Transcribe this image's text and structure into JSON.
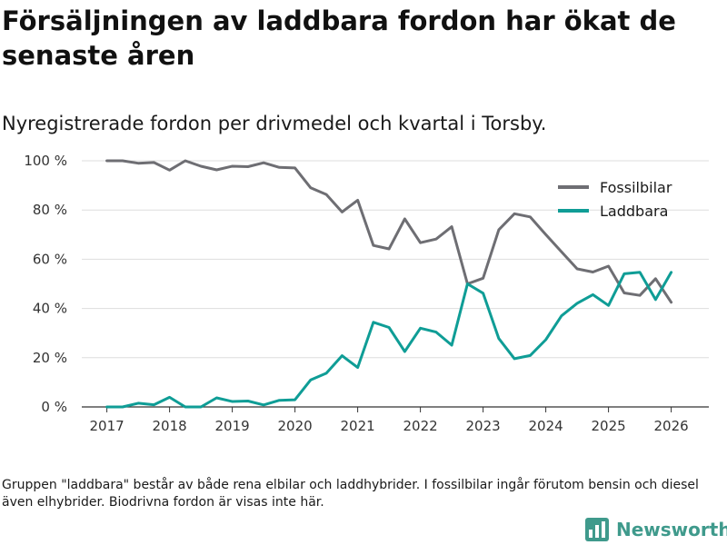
{
  "header": {
    "title": "Försäljningen av laddbara fordon har ökat de senaste åren",
    "subtitle": "Nyregistrerade fordon per drivmedel och kvartal i Torsby."
  },
  "chart_data": {
    "type": "line",
    "title": "Försäljningen av laddbara fordon har ökat de senaste åren",
    "subtitle": "Nyregistrerade fordon per drivmedel och kvartal i Torsby.",
    "xlabel": "",
    "ylabel": "",
    "xlim": [
      2016.6,
      2026.6
    ],
    "ylim": [
      0,
      100
    ],
    "x_ticks": [
      2017,
      2018,
      2019,
      2020,
      2021,
      2022,
      2023,
      2024,
      2025,
      2026
    ],
    "x_tick_labels": [
      "2017",
      "2018",
      "2019",
      "2020",
      "2021",
      "2022",
      "2023",
      "2024",
      "2025",
      "2026"
    ],
    "y_ticks": [
      0,
      20,
      40,
      60,
      80,
      100
    ],
    "y_tick_labels": [
      "0 %",
      "20 %",
      "40 %",
      "60 %",
      "80 %",
      "100 %"
    ],
    "grid": true,
    "legend_position": "top-right",
    "x": [
      2017.0,
      2017.25,
      2017.5,
      2017.75,
      2018.0,
      2018.25,
      2018.5,
      2018.75,
      2019.0,
      2019.25,
      2019.5,
      2019.75,
      2020.0,
      2020.25,
      2020.5,
      2020.75,
      2021.0,
      2021.25,
      2021.5,
      2021.75,
      2022.0,
      2022.25,
      2022.5,
      2022.75,
      2023.0,
      2023.25,
      2023.5,
      2023.75,
      2024.0,
      2024.25,
      2024.5,
      2024.75,
      2025.0,
      2025.25,
      2025.5,
      2025.75,
      2026.0
    ],
    "series": [
      {
        "name": "Fossilbilar",
        "color": "#6e6e73",
        "values": [
          100,
          100,
          99,
          99.3,
          96.2,
          100,
          97.8,
          96.3,
          97.8,
          97.6,
          99.2,
          97.3,
          97.1,
          89,
          86.3,
          79.2,
          84,
          65.6,
          64.2,
          76.4,
          66.7,
          68.2,
          73.2,
          50,
          52.3,
          72,
          78.5,
          77.2,
          70,
          63,
          56.1,
          54.8,
          57.2,
          46.3,
          45.3,
          52.1,
          42.5
        ]
      },
      {
        "name": "Laddbara",
        "color": "#0f9d96",
        "values": [
          0,
          0,
          1.5,
          0.9,
          3.9,
          0,
          0,
          3.7,
          2.2,
          2.4,
          0.8,
          2.7,
          2.9,
          11,
          13.7,
          20.8,
          16,
          34.4,
          32.3,
          22.5,
          32,
          30.4,
          25.1,
          50,
          46.2,
          27.8,
          19.6,
          20.9,
          27.3,
          37,
          42.1,
          45.6,
          41.2,
          54.1,
          54.7,
          43.6,
          54.7
        ]
      }
    ]
  },
  "footnote": "Gruppen \"laddbara\" består av både rena elbilar och laddhybrider. I fossilbilar ingår förutom bensin och diesel även elhybrider. Biodrivna fordon är visas inte här.",
  "brand": {
    "name": "Newsworthy",
    "color": "#3f9a8c"
  }
}
